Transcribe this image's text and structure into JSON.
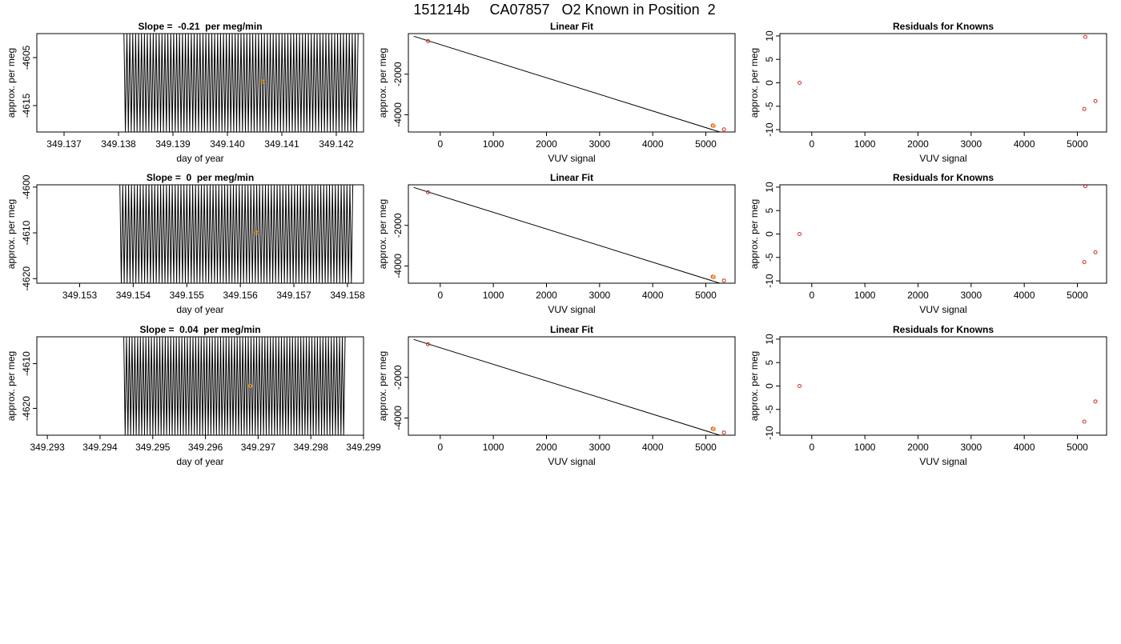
{
  "figure_title": "151214b     CA07857   O2 Known in Position  2",
  "colors": {
    "trace": "#000000",
    "marker": "#d62728",
    "highlight": "#ff9900",
    "frame": "#000000"
  },
  "chart_data": [
    {
      "type": "line",
      "title": "Slope =  -0.21  per meg/min",
      "xlabel": "day of year",
      "ylabel": "approx. per meg",
      "xlim": [
        349.1365,
        349.1425
      ],
      "ylim": [
        -4620.5,
        -4600.0
      ],
      "xticks": [
        "349.137",
        "349.138",
        "349.139",
        "349.140",
        "349.141",
        "349.142"
      ],
      "yticks": [
        "-4605",
        "-4615"
      ],
      "trace": {
        "x_start": 349.1381,
        "x_end": 349.1424,
        "y_low": -4620.5,
        "y_high": -4600.0,
        "cycles": 80
      },
      "highlight_point": {
        "x": 349.14065,
        "y": -4610.0
      },
      "grid": false
    },
    {
      "type": "scatter",
      "title": "Linear Fit",
      "xlabel": "VUV signal",
      "ylabel": "approx. per meg",
      "xlim": [
        -600,
        5550
      ],
      "ylim": [
        -4850,
        0
      ],
      "xticks": [
        "0",
        "1000",
        "2000",
        "3000",
        "4000",
        "5000"
      ],
      "yticks": [
        "-2000",
        "-4000"
      ],
      "fit_line": {
        "x": [
          -500,
          5350
        ],
        "y": [
          -130,
          -4920
        ]
      },
      "points": [
        {
          "x": -230,
          "y": -370,
          "color": "marker"
        },
        {
          "x": 5130,
          "y": -4530,
          "color": "marker"
        },
        {
          "x": 5150,
          "y": -4550,
          "color": "highlight"
        },
        {
          "x": 5340,
          "y": -4720,
          "color": "marker"
        }
      ],
      "grid": false
    },
    {
      "type": "scatter",
      "title": "Residuals for Knowns",
      "xlabel": "VUV signal",
      "ylabel": "approx. per meg",
      "xlim": [
        -600,
        5550
      ],
      "ylim": [
        -10.5,
        10.5
      ],
      "xticks": [
        "0",
        "1000",
        "2000",
        "3000",
        "4000",
        "5000"
      ],
      "yticks": [
        "10",
        "5",
        "0",
        "-5",
        "-10"
      ],
      "points": [
        {
          "x": -230,
          "y": 0.0,
          "color": "marker"
        },
        {
          "x": 5150,
          "y": 9.8,
          "color": "marker"
        },
        {
          "x": 5130,
          "y": -5.6,
          "color": "marker"
        },
        {
          "x": 5340,
          "y": -3.9,
          "color": "marker"
        }
      ],
      "grid": false
    },
    {
      "type": "line",
      "title": "Slope =  0  per meg/min",
      "xlabel": "day of year",
      "ylabel": "approx. per meg",
      "xlim": [
        349.1522,
        349.1583
      ],
      "ylim": [
        -4621.0,
        -4599.5
      ],
      "xticks": [
        "349.153",
        "349.154",
        "349.155",
        "349.156",
        "349.157",
        "349.158"
      ],
      "yticks": [
        "-4600",
        "-4610",
        "-4620"
      ],
      "trace": {
        "x_start": 349.15375,
        "x_end": 349.1581,
        "y_low": -4621.0,
        "y_high": -4599.5,
        "cycles": 80
      },
      "highlight_point": {
        "x": 349.1563,
        "y": -4610.0
      },
      "grid": false
    },
    {
      "type": "scatter",
      "title": "Linear Fit",
      "xlabel": "VUV signal",
      "ylabel": "approx. per meg",
      "xlim": [
        -600,
        5550
      ],
      "ylim": [
        -4850,
        0
      ],
      "xticks": [
        "0",
        "1000",
        "2000",
        "3000",
        "4000",
        "5000"
      ],
      "yticks": [
        "-2000",
        "-4000"
      ],
      "fit_line": {
        "x": [
          -500,
          5350
        ],
        "y": [
          -130,
          -4920
        ]
      },
      "points": [
        {
          "x": -230,
          "y": -370,
          "color": "marker"
        },
        {
          "x": 5130,
          "y": -4530,
          "color": "marker"
        },
        {
          "x": 5150,
          "y": -4550,
          "color": "highlight"
        },
        {
          "x": 5340,
          "y": -4720,
          "color": "marker"
        }
      ],
      "grid": false
    },
    {
      "type": "scatter",
      "title": "Residuals for Knowns",
      "xlabel": "VUV signal",
      "ylabel": "approx. per meg",
      "xlim": [
        -600,
        5550
      ],
      "ylim": [
        -10.5,
        10.5
      ],
      "xticks": [
        "0",
        "1000",
        "2000",
        "3000",
        "4000",
        "5000"
      ],
      "yticks": [
        "10",
        "5",
        "0",
        "-5",
        "-10"
      ],
      "points": [
        {
          "x": -230,
          "y": 0.0,
          "color": "marker"
        },
        {
          "x": 5150,
          "y": 10.2,
          "color": "marker"
        },
        {
          "x": 5130,
          "y": -6.0,
          "color": "marker"
        },
        {
          "x": 5340,
          "y": -3.9,
          "color": "marker"
        }
      ],
      "grid": false
    },
    {
      "type": "line",
      "title": "Slope =  0.04  per meg/min",
      "xlabel": "day of year",
      "ylabel": "approx. per meg",
      "xlim": [
        349.2928,
        349.299
      ],
      "ylim": [
        -4626.0,
        -4604.0
      ],
      "xticks": [
        "349.293",
        "349.294",
        "349.295",
        "349.296",
        "349.297",
        "349.298",
        "349.299"
      ],
      "yticks": [
        "-4610",
        "-4620"
      ],
      "trace": {
        "x_start": 349.29445,
        "x_end": 349.29865,
        "y_low": -4626.0,
        "y_high": -4604.0,
        "cycles": 80
      },
      "highlight_point": {
        "x": 349.29685,
        "y": -4615.0
      },
      "grid": false
    },
    {
      "type": "scatter",
      "title": "Linear Fit",
      "xlabel": "VUV signal",
      "ylabel": "approx. per meg",
      "xlim": [
        -600,
        5550
      ],
      "ylim": [
        -4850,
        0
      ],
      "xticks": [
        "0",
        "1000",
        "2000",
        "3000",
        "4000",
        "5000"
      ],
      "yticks": [
        "-2000",
        "-4000"
      ],
      "fit_line": {
        "x": [
          -500,
          5350
        ],
        "y": [
          -130,
          -4920
        ]
      },
      "points": [
        {
          "x": -230,
          "y": -370,
          "color": "marker"
        },
        {
          "x": 5130,
          "y": -4530,
          "color": "marker"
        },
        {
          "x": 5150,
          "y": -4550,
          "color": "highlight"
        },
        {
          "x": 5340,
          "y": -4720,
          "color": "marker"
        }
      ],
      "grid": false
    },
    {
      "type": "scatter",
      "title": "Residuals for Knowns",
      "xlabel": "VUV signal",
      "ylabel": "approx. per meg",
      "xlim": [
        -600,
        5550
      ],
      "ylim": [
        -10.5,
        10.5
      ],
      "xticks": [
        "0",
        "1000",
        "2000",
        "3000",
        "4000",
        "5000"
      ],
      "yticks": [
        "10",
        "5",
        "0",
        "-5",
        "-10"
      ],
      "points": [
        {
          "x": -230,
          "y": 0.0,
          "color": "marker"
        },
        {
          "x": 5130,
          "y": -7.6,
          "color": "marker"
        },
        {
          "x": 5340,
          "y": -3.3,
          "color": "marker"
        }
      ],
      "grid": false
    }
  ]
}
